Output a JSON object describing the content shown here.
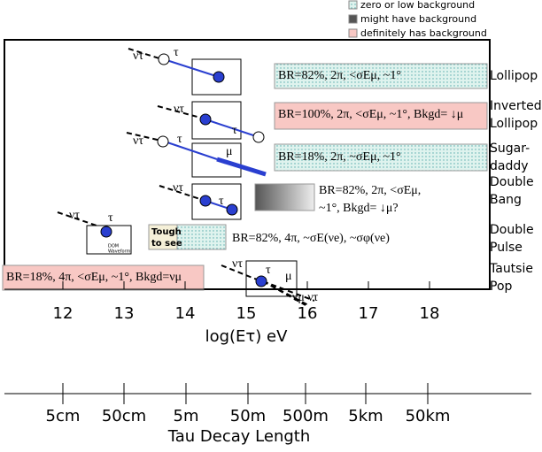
{
  "legend": [
    {
      "label": "zero or low background"
    },
    {
      "label": "might have background"
    },
    {
      "label": "definitely has background"
    }
  ],
  "symbols": {
    "nu": "ντ",
    "tau": "τ",
    "mu": "μ",
    "nu_mu": "νμ ντ"
  },
  "events": [
    {
      "name": [
        "Lollipop"
      ],
      "text": [
        "BR=82%, 2π, <σEμ, ~1°"
      ]
    },
    {
      "name": [
        "Inverted",
        "Lollipop"
      ],
      "text": [
        "BR=100%, 2π, <σEμ, ~1°, Bkgd= ↓μ"
      ]
    },
    {
      "name": [
        "Sugar-",
        "daddy"
      ],
      "text": [
        "BR=18%, 2π, ~σEμ, ~1°"
      ]
    },
    {
      "name": [
        "Double",
        "Bang"
      ],
      "text": [
        "BR=82%, 2π, <σEμ,",
        "~1°, Bkgd= ↓μ?"
      ]
    },
    {
      "name": [
        "Double",
        "Pulse"
      ],
      "text": [
        "BR=82%, 4π, ~σE(νe), ~σφ(νe)"
      ],
      "note": [
        "Tough",
        "to see"
      ],
      "dom": [
        "DOM",
        "Waveform"
      ]
    },
    {
      "name": [
        "Tautsie",
        "Pop"
      ],
      "text": [
        "BR=18%, 4π, <σEμ, ~1°, Bkgd=νμ"
      ]
    }
  ],
  "energy_axis": {
    "ticks": [
      "12",
      "13",
      "14",
      "15",
      "16",
      "17",
      "18"
    ],
    "label": "log(Eτ) eV"
  },
  "length_axis": {
    "ticks": [
      "5cm",
      "50cm",
      "5m",
      "50m",
      "500m",
      "5km",
      "50km"
    ],
    "label": "Tau Decay Length"
  }
}
